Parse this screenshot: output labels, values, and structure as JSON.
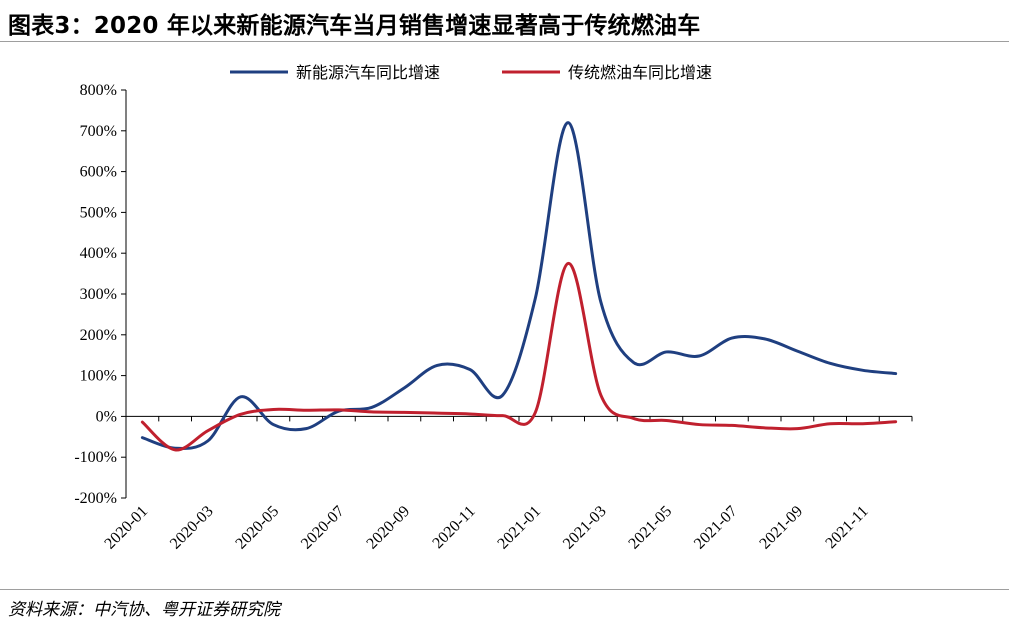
{
  "header": {
    "title": "图表3：2020 年以来新能源汽车当月销售增速显著高于传统燃油车"
  },
  "footer": {
    "source": "资料来源：中汽协、粤开证券研究院"
  },
  "chart_data": {
    "type": "line",
    "title": "",
    "xlabel": "",
    "ylabel": "",
    "ylim": [
      -200,
      800
    ],
    "y_ticks": [
      "-200%",
      "-100%",
      "0%",
      "100%",
      "200%",
      "300%",
      "400%",
      "500%",
      "600%",
      "700%",
      "800%"
    ],
    "y_tick_values": [
      -200,
      -100,
      0,
      100,
      200,
      300,
      400,
      500,
      600,
      700,
      800
    ],
    "x": [
      "2020-01",
      "2020-02",
      "2020-03",
      "2020-04",
      "2020-05",
      "2020-06",
      "2020-07",
      "2020-08",
      "2020-09",
      "2020-10",
      "2020-11",
      "2020-12",
      "2021-01",
      "2021-02",
      "2021-03",
      "2021-04",
      "2021-05",
      "2021-06",
      "2021-07",
      "2021-08",
      "2021-09",
      "2021-10",
      "2021-11",
      "2021-12"
    ],
    "x_tick_labels": [
      "2020-01",
      "2020-03",
      "2020-05",
      "2020-07",
      "2020-09",
      "2020-11",
      "2021-01",
      "2021-03",
      "2021-05",
      "2021-07",
      "2021-09",
      "2021-11"
    ],
    "x_tick_indices": [
      0,
      2,
      4,
      6,
      8,
      10,
      12,
      14,
      16,
      18,
      20,
      22
    ],
    "grid": false,
    "legend_position": "top",
    "series": [
      {
        "name": "新能源汽车同比增速",
        "color": "#1f3f80",
        "values": [
          -52,
          -78,
          -60,
          48,
          -20,
          -30,
          13,
          22,
          70,
          125,
          115,
          52,
          290,
          720,
          280,
          132,
          158,
          148,
          192,
          190,
          160,
          130,
          113,
          105
        ]
      },
      {
        "name": "传统燃油车同比增速",
        "color": "#c0202e",
        "values": [
          -14,
          -82,
          -35,
          5,
          17,
          15,
          16,
          11,
          10,
          8,
          6,
          2,
          10,
          375,
          52,
          -5,
          -10,
          -20,
          -22,
          -28,
          -30,
          -18,
          -18,
          -13
        ]
      }
    ]
  }
}
